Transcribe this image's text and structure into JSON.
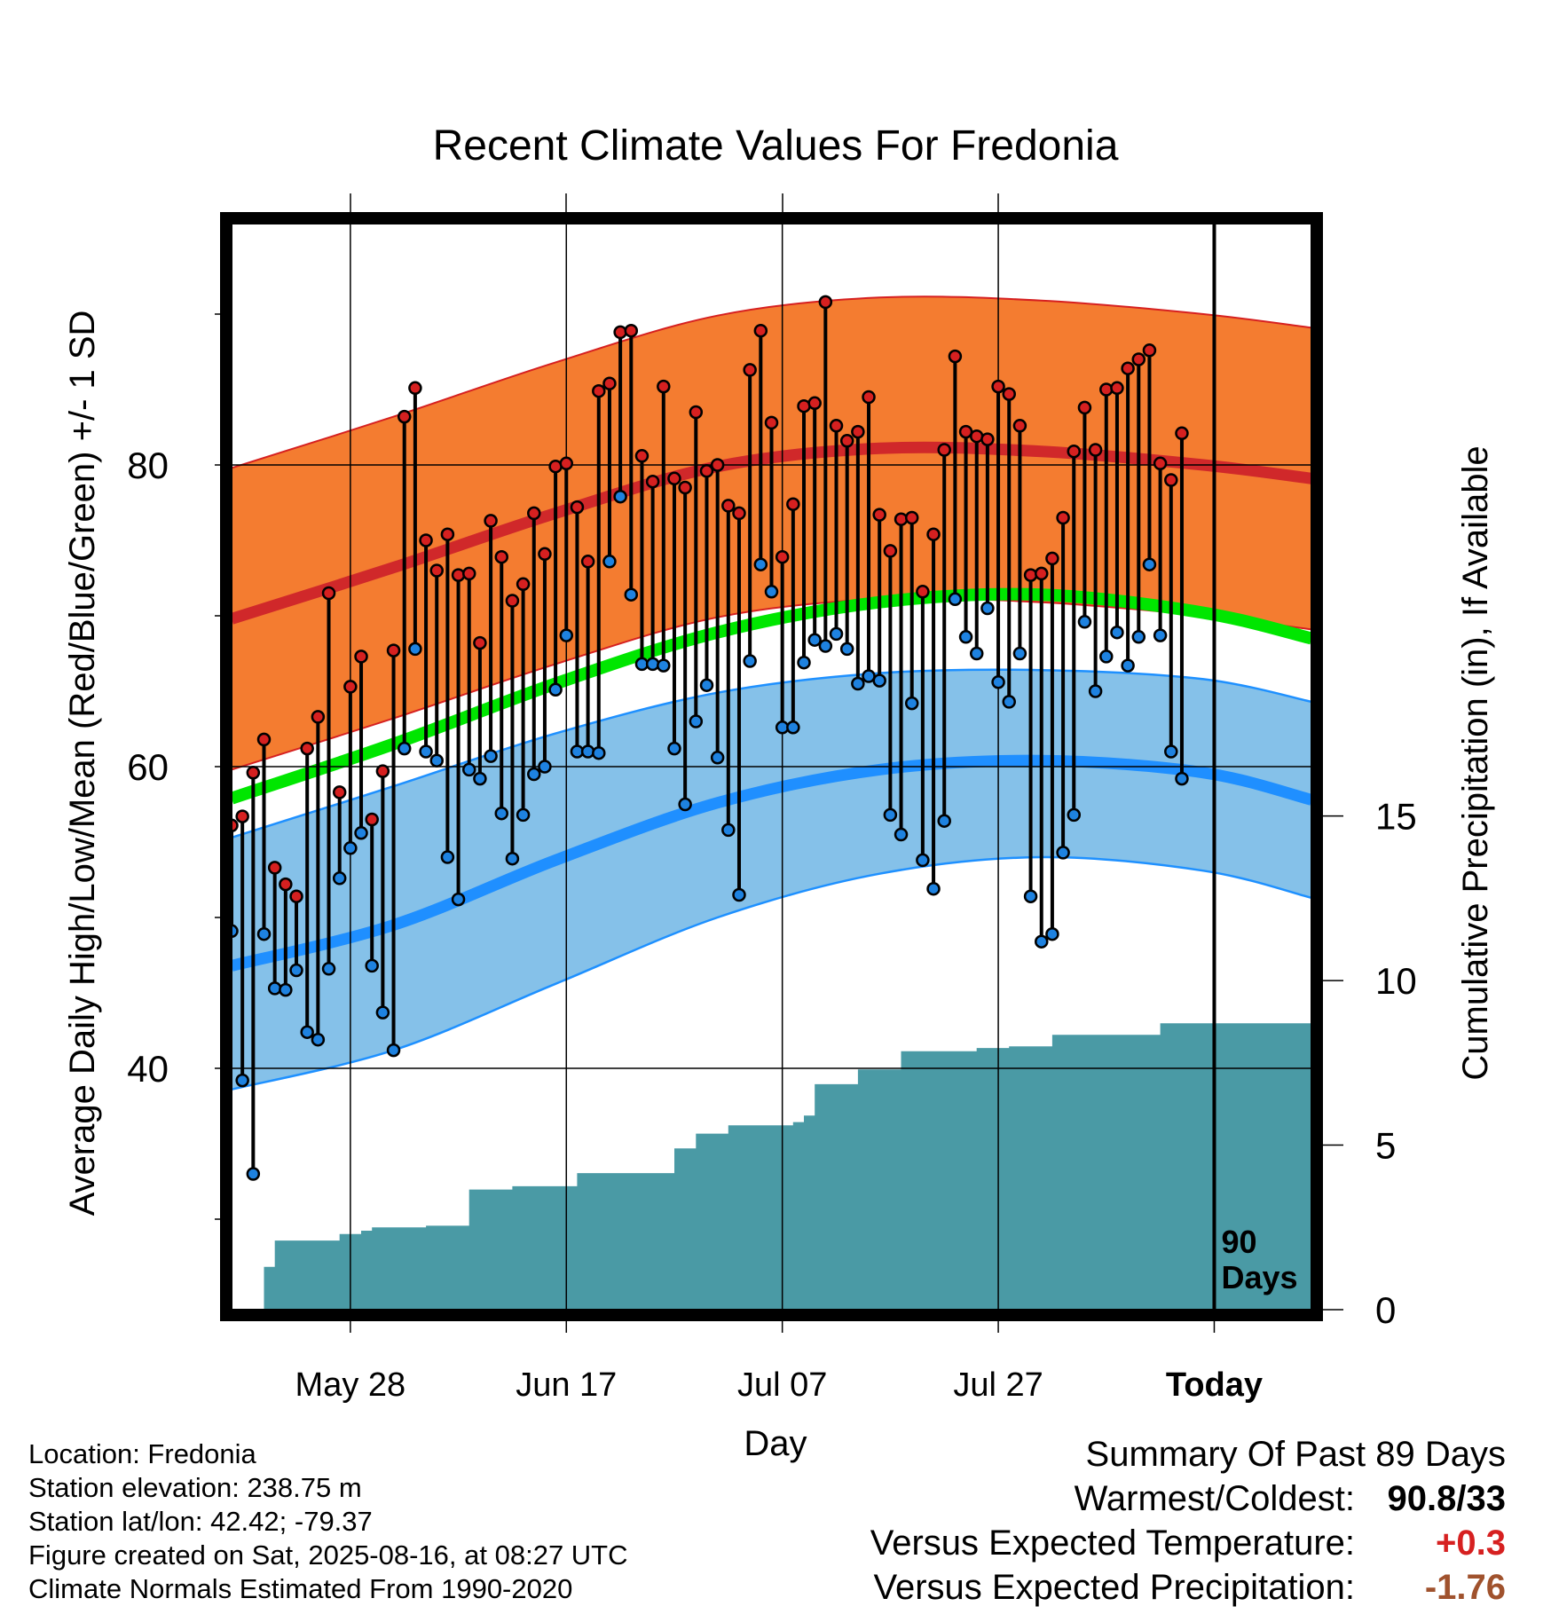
{
  "title": "Recent Climate Values For Fredonia",
  "xlabel": "Day",
  "ylabel_left": "Average Daily High/Low/Mean (Red/Blue/Green) +/- 1 SD",
  "ylabel_right": "Cumulative Precipitation (in), If Available",
  "today_marker_label": "90 Days",
  "info": {
    "location": "Location: Fredonia",
    "elevation": "Station elevation: 238.75 m",
    "latlon": "Station lat/lon: 42.42; -79.37",
    "created": "Figure created on Sat, 2025-08-16, at 08:27 UTC",
    "normals": "Climate Normals Estimated From 1990-2020"
  },
  "summary": {
    "heading": "Summary Of Past 89 Days",
    "warm_cold_label": "Warmest/Coldest:",
    "warm_cold_value": "90.8/33",
    "temp_label": "Versus Expected Temperature:",
    "temp_value": "+0.3",
    "temp_color": "#d62020",
    "precip_label": "Versus Expected Precipitation:",
    "precip_value": "-1.76",
    "precip_color": "#a0522d"
  },
  "chart_data": {
    "type": "line",
    "x_range": [
      "2025-05-17",
      "2025-08-25"
    ],
    "y_range_temp_F": [
      24,
      96
    ],
    "y_range_precip_in": [
      0,
      33
    ],
    "temp_ticks": [
      40,
      60,
      80
    ],
    "precip_ticks": [
      0,
      5,
      10,
      15
    ],
    "x_ticks": [
      "May 28",
      "Jun 17",
      "Jul 07",
      "Jul 27",
      "Today"
    ],
    "x_tick_dates": [
      "2025-05-28",
      "2025-06-17",
      "2025-07-07",
      "2025-07-27",
      "2025-08-16"
    ],
    "grid": true,
    "colors": {
      "high_band": "#f47c30",
      "high_edge": "#d62020",
      "high_mean": "#d0282a",
      "low_band": "#85c1e9",
      "low_edge": "#1e90ff",
      "low_mean": "#1f8fff",
      "normal_mean": "#00e600",
      "precip": "#4a9aa5",
      "high_marker": "#d62020",
      "low_marker": "#1e82e0"
    },
    "normal_high_dates": [
      "2025-05-17",
      "2025-06-01",
      "2025-06-16",
      "2025-07-01",
      "2025-07-16",
      "2025-07-31",
      "2025-08-15",
      "2025-08-25"
    ],
    "normal_high": [
      69.8,
      73.2,
      76.8,
      79.9,
      81.1,
      80.9,
      80.0,
      79.1
    ],
    "normal_high_sd": 10,
    "normal_low": [
      46.8,
      49.5,
      53.8,
      57.6,
      59.8,
      60.4,
      59.6,
      57.8
    ],
    "normal_low_upper": [
      55.3,
      58.7,
      62.2,
      64.9,
      66.2,
      66.4,
      65.8,
      64.3
    ],
    "normal_low_lower": [
      38.6,
      41.2,
      45.6,
      50.0,
      52.9,
      54.0,
      53.1,
      51.3
    ],
    "normal_mean": [
      57.9,
      61.5,
      65.5,
      68.9,
      70.9,
      71.4,
      70.2,
      68.5
    ],
    "observations": {
      "start_date": "2025-05-17",
      "high": [
        56.1,
        56.7,
        59.6,
        61.8,
        53.3,
        52.2,
        51.4,
        61.2,
        63.3,
        71.5,
        58.3,
        65.3,
        67.3,
        56.5,
        59.7,
        67.7,
        83.2,
        85.1,
        75.0,
        73.0,
        75.4,
        72.7,
        72.8,
        68.2,
        76.3,
        73.9,
        71.0,
        72.1,
        76.8,
        74.1,
        79.9,
        80.1,
        77.2,
        73.6,
        84.9,
        85.4,
        88.8,
        88.9,
        80.6,
        78.9,
        85.2,
        79.1,
        78.5,
        83.5,
        79.6,
        80.0,
        77.3,
        76.8,
        86.3,
        88.9,
        82.8,
        73.9,
        77.4,
        83.9,
        84.1,
        90.8,
        82.6,
        81.6,
        82.2,
        84.5,
        76.7,
        74.3,
        76.4,
        76.5,
        71.6,
        75.4,
        81.0,
        87.2,
        82.2,
        81.9,
        81.7,
        85.2,
        84.7,
        82.6,
        72.7,
        72.8,
        73.8,
        76.5,
        80.9,
        83.8,
        81.0,
        85.0,
        85.1,
        86.4,
        87.0,
        87.6,
        80.1,
        79.0,
        82.1
      ],
      "low": [
        49.1,
        39.2,
        33.0,
        48.9,
        45.3,
        45.2,
        46.5,
        42.4,
        41.9,
        46.6,
        52.6,
        54.6,
        55.6,
        46.8,
        43.7,
        41.2,
        61.2,
        67.8,
        61.0,
        60.4,
        54.0,
        51.2,
        59.8,
        59.2,
        60.7,
        56.9,
        53.9,
        56.8,
        59.5,
        60.0,
        65.1,
        68.7,
        61.0,
        61.0,
        60.9,
        73.6,
        77.9,
        71.4,
        66.8,
        66.8,
        66.7,
        61.2,
        57.5,
        63.0,
        65.4,
        60.6,
        55.8,
        51.5,
        67.0,
        73.4,
        71.6,
        62.6,
        62.6,
        66.9,
        68.4,
        68.0,
        68.8,
        67.8,
        65.5,
        66.0,
        65.7,
        56.8,
        55.5,
        64.2,
        53.8,
        51.9,
        56.4,
        71.1,
        68.6,
        67.5,
        70.5,
        65.6,
        64.3,
        67.5,
        51.4,
        48.4,
        48.9,
        54.3,
        56.8,
        69.6,
        65.0,
        67.3,
        68.9,
        66.7,
        68.6,
        73.4,
        68.7,
        61.0,
        59.2
      ]
    },
    "cumulative_precip": {
      "start_date": "2025-05-17",
      "values": [
        0,
        0,
        0,
        1.3,
        2.1,
        2.1,
        2.1,
        2.1,
        2.1,
        2.1,
        2.3,
        2.3,
        2.4,
        2.5,
        2.5,
        2.5,
        2.5,
        2.5,
        2.55,
        2.55,
        2.55,
        2.55,
        3.65,
        3.65,
        3.65,
        3.65,
        3.75,
        3.75,
        3.75,
        3.75,
        3.75,
        3.75,
        4.15,
        4.15,
        4.15,
        4.15,
        4.15,
        4.15,
        4.15,
        4.15,
        4.15,
        4.9,
        4.9,
        5.35,
        5.35,
        5.35,
        5.6,
        5.6,
        5.6,
        5.6,
        5.6,
        5.6,
        5.7,
        5.9,
        6.85,
        6.85,
        6.85,
        6.85,
        7.3,
        7.3,
        7.3,
        7.3,
        7.85,
        7.85,
        7.85,
        7.85,
        7.85,
        7.85,
        7.85,
        7.95,
        7.95,
        7.95,
        8.0,
        8.0,
        8.0,
        8.0,
        8.35,
        8.35,
        8.35,
        8.35,
        8.35,
        8.35,
        8.35,
        8.35,
        8.35,
        8.35,
        8.7,
        8.7,
        8.7,
        8.7,
        8.7,
        8.7,
        8.7,
        8.7,
        8.7,
        8.7,
        8.7,
        8.7,
        8.7,
        8.7,
        8.7
      ]
    }
  }
}
